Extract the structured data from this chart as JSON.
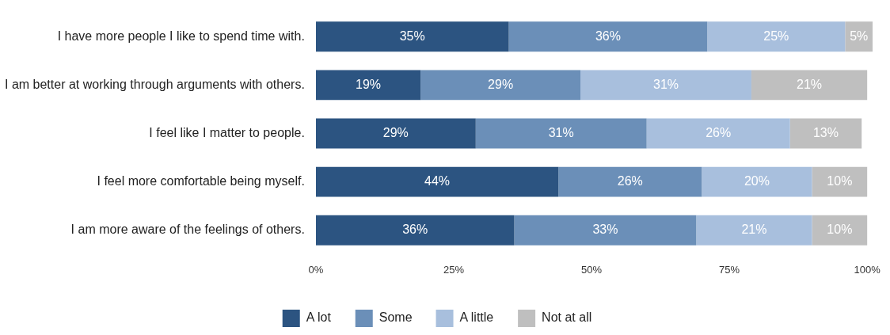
{
  "chart_data": {
    "type": "bar",
    "orientation": "horizontal",
    "stacked": true,
    "legend": "bottom",
    "grid": false,
    "categories": [
      "I have more people I like to spend time with.",
      "I am better at working through arguments with others.",
      "I feel like I matter to people.",
      "I feel more comfortable being myself.",
      "I am more aware of the feelings of others."
    ],
    "xlim": [
      0,
      101
    ],
    "xticks": [
      {
        "value": 0,
        "label": "0%"
      },
      {
        "value": 25,
        "label": "25%"
      },
      {
        "value": 50,
        "label": "50%"
      },
      {
        "value": 75,
        "label": "75%"
      },
      {
        "value": 100,
        "label": "100%"
      }
    ],
    "series": [
      {
        "name": "A lot",
        "color": "#2c5481",
        "values": [
          35,
          19,
          29,
          44,
          36
        ],
        "value_labels": [
          "35%",
          "19%",
          "29%",
          "44%",
          "36%"
        ]
      },
      {
        "name": "Some",
        "color": "#6b8fb8",
        "values": [
          36,
          29,
          31,
          26,
          33
        ],
        "value_labels": [
          "36%",
          "29%",
          "31%",
          "26%",
          "33%"
        ]
      },
      {
        "name": "A little",
        "color": "#a8bfdd",
        "values": [
          25,
          31,
          26,
          20,
          21
        ],
        "value_labels": [
          "25%",
          "31%",
          "26%",
          "20%",
          "21%"
        ]
      },
      {
        "name": "Not at all",
        "color": "#bfbfbf",
        "values": [
          5,
          21,
          13,
          10,
          10
        ],
        "value_labels": [
          "5%",
          "21%",
          "13%",
          "10%",
          "10%"
        ]
      }
    ]
  }
}
